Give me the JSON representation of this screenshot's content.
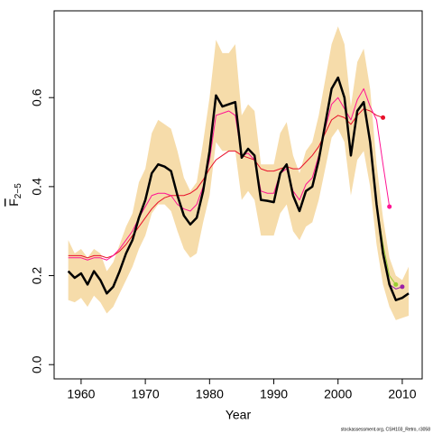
{
  "chart_data": {
    "type": "line",
    "xlabel": "Year",
    "ylabel": "F",
    "ylabel_subscript": "2−5",
    "footnote": "stockassessment.org, CSH103_Retro, r3058",
    "xlim": [
      1955.8,
      2013.1
    ],
    "ylim": [
      -0.032,
      0.795
    ],
    "xticks": [
      1960,
      1970,
      1980,
      1990,
      2000,
      2010
    ],
    "yticks": [
      {
        "value": 0,
        "label": "0.0"
      },
      0.2,
      0.4,
      0.6
    ],
    "x": [
      1958,
      1959,
      1960,
      1961,
      1962,
      1963,
      1964,
      1965,
      1966,
      1967,
      1968,
      1969,
      1970,
      1971,
      1972,
      1973,
      1974,
      1975,
      1976,
      1977,
      1978,
      1979,
      1980,
      1981,
      1982,
      1983,
      1984,
      1985,
      1986,
      1987,
      1988,
      1989,
      1990,
      1991,
      1992,
      1993,
      1994,
      1995,
      1996,
      1997,
      1998,
      1999,
      2000,
      2001,
      2002,
      2003,
      2004,
      2005,
      2006,
      2007,
      2008,
      2009,
      2010,
      2011
    ],
    "band": {
      "color": "#f6dcaa",
      "upper": [
        0.28,
        0.25,
        0.26,
        0.24,
        0.26,
        0.25,
        0.21,
        0.23,
        0.27,
        0.31,
        0.34,
        0.41,
        0.44,
        0.52,
        0.55,
        0.54,
        0.53,
        0.48,
        0.42,
        0.39,
        0.41,
        0.5,
        0.6,
        0.73,
        0.7,
        0.7,
        0.72,
        0.56,
        0.585,
        0.57,
        0.45,
        0.45,
        0.45,
        0.52,
        0.545,
        0.47,
        0.43,
        0.48,
        0.5,
        0.56,
        0.64,
        0.72,
        0.76,
        0.72,
        0.58,
        0.68,
        0.71,
        0.62,
        0.45,
        0.33,
        0.24,
        0.2,
        0.19,
        0.22
      ],
      "lower": [
        0.145,
        0.14,
        0.15,
        0.13,
        0.155,
        0.14,
        0.115,
        0.13,
        0.16,
        0.19,
        0.22,
        0.26,
        0.29,
        0.34,
        0.36,
        0.36,
        0.345,
        0.3,
        0.26,
        0.24,
        0.25,
        0.32,
        0.38,
        0.5,
        0.48,
        0.48,
        0.48,
        0.37,
        0.39,
        0.37,
        0.29,
        0.29,
        0.29,
        0.34,
        0.36,
        0.3,
        0.28,
        0.31,
        0.32,
        0.37,
        0.44,
        0.51,
        0.53,
        0.5,
        0.38,
        0.46,
        0.48,
        0.4,
        0.27,
        0.18,
        0.13,
        0.1,
        0.105,
        0.11
      ]
    },
    "series": [
      {
        "color": "#e8102a",
        "end_marker": true,
        "values": [
          0.245,
          0.245,
          0.245,
          0.24,
          0.245,
          0.245,
          0.24,
          0.245,
          0.255,
          0.27,
          0.29,
          0.31,
          0.33,
          0.35,
          0.365,
          0.375,
          0.38,
          0.38,
          0.38,
          0.385,
          0.395,
          0.415,
          0.44,
          0.46,
          0.47,
          0.48,
          0.48,
          0.47,
          0.465,
          0.46,
          0.44,
          0.435,
          0.435,
          0.44,
          0.445,
          0.44,
          0.44,
          0.455,
          0.47,
          0.49,
          0.52,
          0.55,
          0.56,
          0.555,
          0.54,
          0.56,
          0.575,
          0.57,
          0.56,
          0.555,
          null,
          null,
          null,
          null
        ]
      },
      {
        "color": "#ff1493",
        "end_marker": true,
        "values": [
          0.24,
          0.24,
          0.24,
          0.235,
          0.24,
          0.24,
          0.235,
          0.245,
          0.26,
          0.28,
          0.3,
          0.33,
          0.355,
          0.38,
          0.385,
          0.385,
          0.38,
          0.36,
          0.35,
          0.345,
          0.36,
          0.4,
          0.46,
          0.56,
          0.565,
          0.57,
          0.56,
          0.47,
          0.475,
          0.46,
          0.39,
          0.385,
          0.385,
          0.43,
          0.44,
          0.39,
          0.37,
          0.405,
          0.42,
          0.47,
          0.53,
          0.585,
          0.6,
          0.575,
          0.55,
          0.595,
          0.62,
          0.58,
          0.55,
          0.45,
          0.355,
          null,
          null,
          null
        ]
      },
      {
        "color": "#9acd32",
        "end_marker": true,
        "values": [
          0.21,
          0.195,
          0.205,
          0.18,
          0.21,
          0.19,
          0.16,
          0.175,
          0.21,
          0.25,
          0.28,
          0.33,
          0.37,
          0.43,
          0.45,
          0.445,
          0.435,
          0.38,
          0.335,
          0.315,
          0.33,
          0.39,
          0.48,
          0.605,
          0.58,
          0.585,
          0.59,
          0.465,
          0.485,
          0.47,
          0.37,
          0.368,
          0.365,
          0.43,
          0.45,
          0.38,
          0.345,
          0.39,
          0.4,
          0.46,
          0.54,
          0.62,
          0.645,
          0.6,
          0.47,
          0.57,
          0.59,
          0.5,
          0.36,
          0.27,
          0.2,
          0.18,
          null,
          null
        ]
      },
      {
        "color": "#9b1fa8",
        "end_marker": true,
        "values": [
          0.21,
          0.195,
          0.205,
          0.18,
          0.21,
          0.19,
          0.16,
          0.175,
          0.21,
          0.25,
          0.28,
          0.33,
          0.37,
          0.43,
          0.45,
          0.445,
          0.435,
          0.38,
          0.335,
          0.315,
          0.33,
          0.39,
          0.48,
          0.605,
          0.58,
          0.585,
          0.59,
          0.465,
          0.485,
          0.47,
          0.37,
          0.368,
          0.365,
          0.43,
          0.45,
          0.38,
          0.345,
          0.39,
          0.4,
          0.46,
          0.54,
          0.62,
          0.645,
          0.6,
          0.47,
          0.57,
          0.59,
          0.5,
          0.36,
          0.25,
          0.18,
          0.17,
          0.175,
          null
        ]
      },
      {
        "color": "#000000",
        "end_marker": false,
        "width": 2.5,
        "values": [
          0.21,
          0.195,
          0.205,
          0.18,
          0.21,
          0.19,
          0.16,
          0.175,
          0.21,
          0.25,
          0.28,
          0.33,
          0.37,
          0.43,
          0.45,
          0.445,
          0.435,
          0.38,
          0.335,
          0.315,
          0.33,
          0.39,
          0.48,
          0.605,
          0.58,
          0.585,
          0.59,
          0.465,
          0.485,
          0.47,
          0.37,
          0.368,
          0.365,
          0.43,
          0.45,
          0.38,
          0.345,
          0.39,
          0.4,
          0.46,
          0.54,
          0.62,
          0.645,
          0.6,
          0.47,
          0.57,
          0.59,
          0.5,
          0.36,
          0.25,
          0.18,
          0.145,
          0.15,
          0.16
        ]
      }
    ]
  }
}
